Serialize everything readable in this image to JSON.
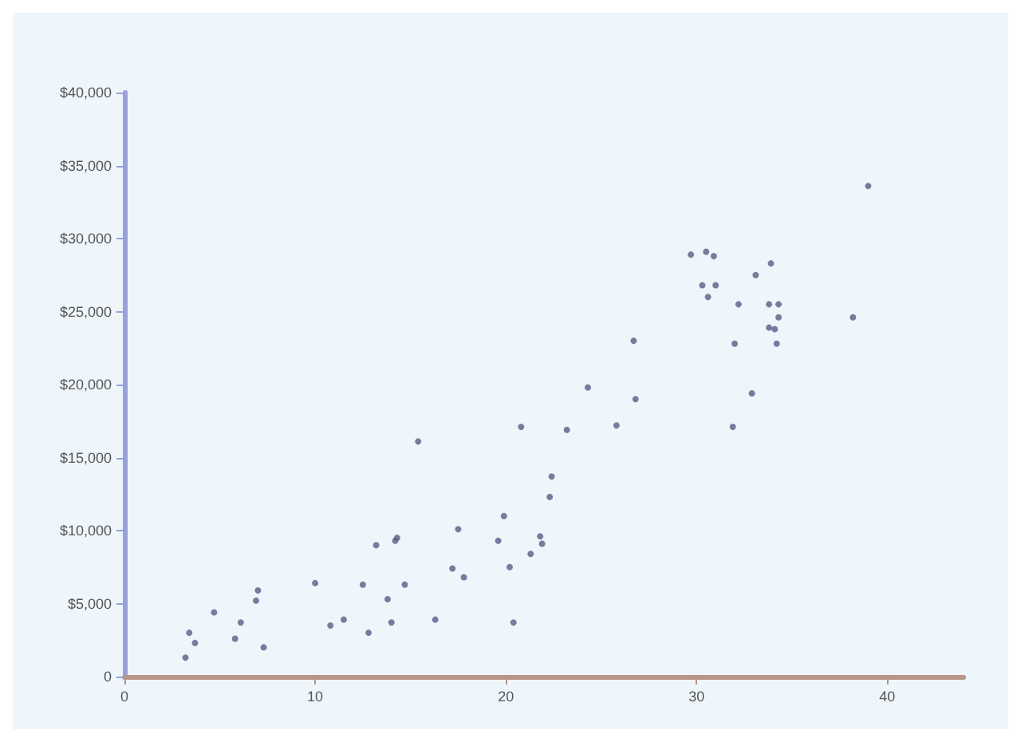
{
  "chart_data": {
    "type": "scatter",
    "marker": "circle",
    "grid": false,
    "x": [
      39,
      30.5,
      29.7,
      30.9,
      33.9,
      33.1,
      30.3,
      31,
      30.6,
      33.8,
      34.3,
      32.2,
      34.3,
      38.2,
      33.8,
      34.1,
      34.2,
      32,
      26.7,
      24.3,
      26.8,
      32.9,
      20.8,
      23.2,
      25.8,
      31.9,
      22.4,
      22.3,
      19.9,
      21.8,
      21.9,
      19.6,
      21.3,
      20.2,
      17.8,
      20.4,
      17.2,
      17.5,
      14.2,
      13.2,
      14.3,
      12.5,
      7,
      6.9,
      10,
      13.8,
      14.7,
      11.5,
      14,
      16.3,
      10.8,
      12.8,
      6.1,
      5.8,
      4.7,
      3.4,
      3.7,
      3.2,
      7.3,
      15.4
    ],
    "series": [
      {
        "color": "#5e5a85",
        "values": [
          33600,
          29100,
          28900,
          28800,
          28300,
          27500,
          26800,
          26800,
          26000,
          25500,
          25500,
          25500,
          24600,
          24600,
          23900,
          23800,
          22800,
          22800,
          23000,
          19800,
          19000,
          19400,
          17100,
          16900,
          17200,
          17100,
          13700,
          12300,
          11000,
          9600,
          9100,
          9300,
          8400,
          7500,
          6800,
          3700,
          7400,
          10100,
          9300,
          9000,
          9500,
          6300,
          5900,
          5200,
          6400,
          5300,
          6300,
          3900,
          3700,
          3900,
          3500,
          3000,
          3700,
          2600,
          4400,
          3000,
          2300,
          1300,
          2000,
          16100
        ]
      }
    ],
    "xlim": [
      0,
      44
    ],
    "xticks": [
      0,
      10,
      20,
      30,
      40
    ],
    "ylim": [
      0,
      40000
    ],
    "yticks": [
      0,
      {
        "value": 5000,
        "label": "$5,000"
      },
      {
        "value": 10000,
        "label": "$10,000"
      },
      {
        "value": 15000,
        "label": "$15,000"
      },
      {
        "value": 20000,
        "label": "$20,000"
      },
      {
        "value": 25000,
        "label": "$25,000"
      },
      {
        "value": 30000,
        "label": "$30,000"
      },
      {
        "value": 35000,
        "label": "$35,000"
      },
      {
        "value": 40000,
        "label": "$40,000"
      }
    ]
  }
}
